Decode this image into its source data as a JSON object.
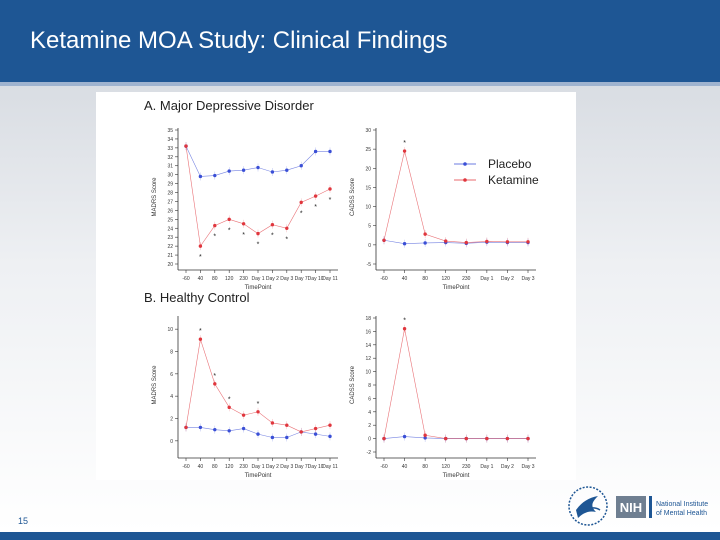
{
  "slide": {
    "title": "Ketamine MOA Study: Clinical Findings",
    "page_number": "15",
    "logo_text_nih": "NIH",
    "logo_text_institute": "National Institute of Mental Health",
    "colors": {
      "header": "#1e5694",
      "placebo": "#3a4fd6",
      "ketamine": "#e0363d"
    }
  },
  "chart_data": [
    {
      "id": "A1",
      "type": "line",
      "panel_title": "A. Major Depressive Disorder",
      "xlabel": "TimePoint",
      "ylabel": "MADRS Score",
      "categories": [
        "-60",
        "40",
        "80",
        "120",
        "230",
        "Day 1",
        "Day 2",
        "Day 3",
        "Day 7",
        "Day 10",
        "Day 11"
      ],
      "ylim": [
        20,
        35
      ],
      "yticks": [
        20,
        21,
        22,
        23,
        24,
        25,
        26,
        27,
        28,
        29,
        30,
        31,
        32,
        33,
        34,
        35
      ],
      "series": [
        {
          "name": "Placebo",
          "values": [
            33.2,
            29.8,
            29.9,
            30.4,
            30.5,
            30.8,
            30.3,
            30.5,
            31.0,
            32.6,
            32.6
          ]
        },
        {
          "name": "Ketamine",
          "values": [
            33.2,
            22.0,
            24.3,
            25.0,
            24.5,
            23.4,
            24.4,
            24.0,
            26.9,
            27.6,
            28.4
          ]
        }
      ],
      "significance_at": [
        1,
        2,
        3,
        4,
        5,
        6,
        7,
        8,
        9,
        10
      ]
    },
    {
      "id": "A2",
      "type": "line",
      "xlabel": "TimePoint",
      "ylabel": "CADSS Score",
      "categories": [
        "-60",
        "40",
        "80",
        "120",
        "230",
        "Day 1",
        "Day 2",
        "Day 3"
      ],
      "ylim": [
        -5,
        30
      ],
      "yticks": [
        -5,
        0,
        5,
        10,
        15,
        20,
        25,
        30
      ],
      "series": [
        {
          "name": "Placebo",
          "values": [
            1.2,
            0.3,
            0.5,
            0.6,
            0.4,
            0.7,
            0.6,
            0.6
          ]
        },
        {
          "name": "Ketamine",
          "values": [
            1.2,
            24.5,
            2.8,
            1.0,
            0.6,
            0.9,
            0.8,
            0.8
          ]
        }
      ],
      "significance_at": [
        1
      ],
      "legend": {
        "placement": "top-right",
        "entries": [
          "Placebo",
          "Ketamine"
        ]
      }
    },
    {
      "id": "B1",
      "type": "line",
      "panel_title": "B. Healthy Control",
      "xlabel": "TimePoint",
      "ylabel": "MADRS Score",
      "categories": [
        "-60",
        "40",
        "80",
        "120",
        "230",
        "Day 1",
        "Day 2",
        "Day 3",
        "Day 7",
        "Day 10",
        "Day 11"
      ],
      "ylim": [
        -1,
        11
      ],
      "yticks": [
        0,
        2,
        4,
        6,
        8,
        10
      ],
      "series": [
        {
          "name": "Placebo",
          "values": [
            1.2,
            1.2,
            1.0,
            0.9,
            1.1,
            0.6,
            0.3,
            0.3,
            0.8,
            0.6,
            0.4
          ]
        },
        {
          "name": "Ketamine",
          "values": [
            1.2,
            9.1,
            5.1,
            3.0,
            2.3,
            2.6,
            1.6,
            1.4,
            0.8,
            1.1,
            1.4
          ]
        }
      ],
      "significance_at": [
        1,
        2,
        3,
        5
      ]
    },
    {
      "id": "B2",
      "type": "line",
      "xlabel": "TimePoint",
      "ylabel": "CADSS Score",
      "categories": [
        "-60",
        "40",
        "80",
        "120",
        "230",
        "Day 1",
        "Day 2",
        "Day 3"
      ],
      "ylim": [
        -2,
        18
      ],
      "yticks": [
        -2,
        0,
        2,
        4,
        6,
        8,
        10,
        12,
        14,
        16,
        18
      ],
      "series": [
        {
          "name": "Placebo",
          "values": [
            0.0,
            0.3,
            0.1,
            0.0,
            0.0,
            0.0,
            0.0,
            0.0
          ]
        },
        {
          "name": "Ketamine",
          "values": [
            0.0,
            16.4,
            0.5,
            0.0,
            0.0,
            0.0,
            0.0,
            0.0
          ]
        }
      ],
      "significance_at": [
        1
      ]
    }
  ]
}
